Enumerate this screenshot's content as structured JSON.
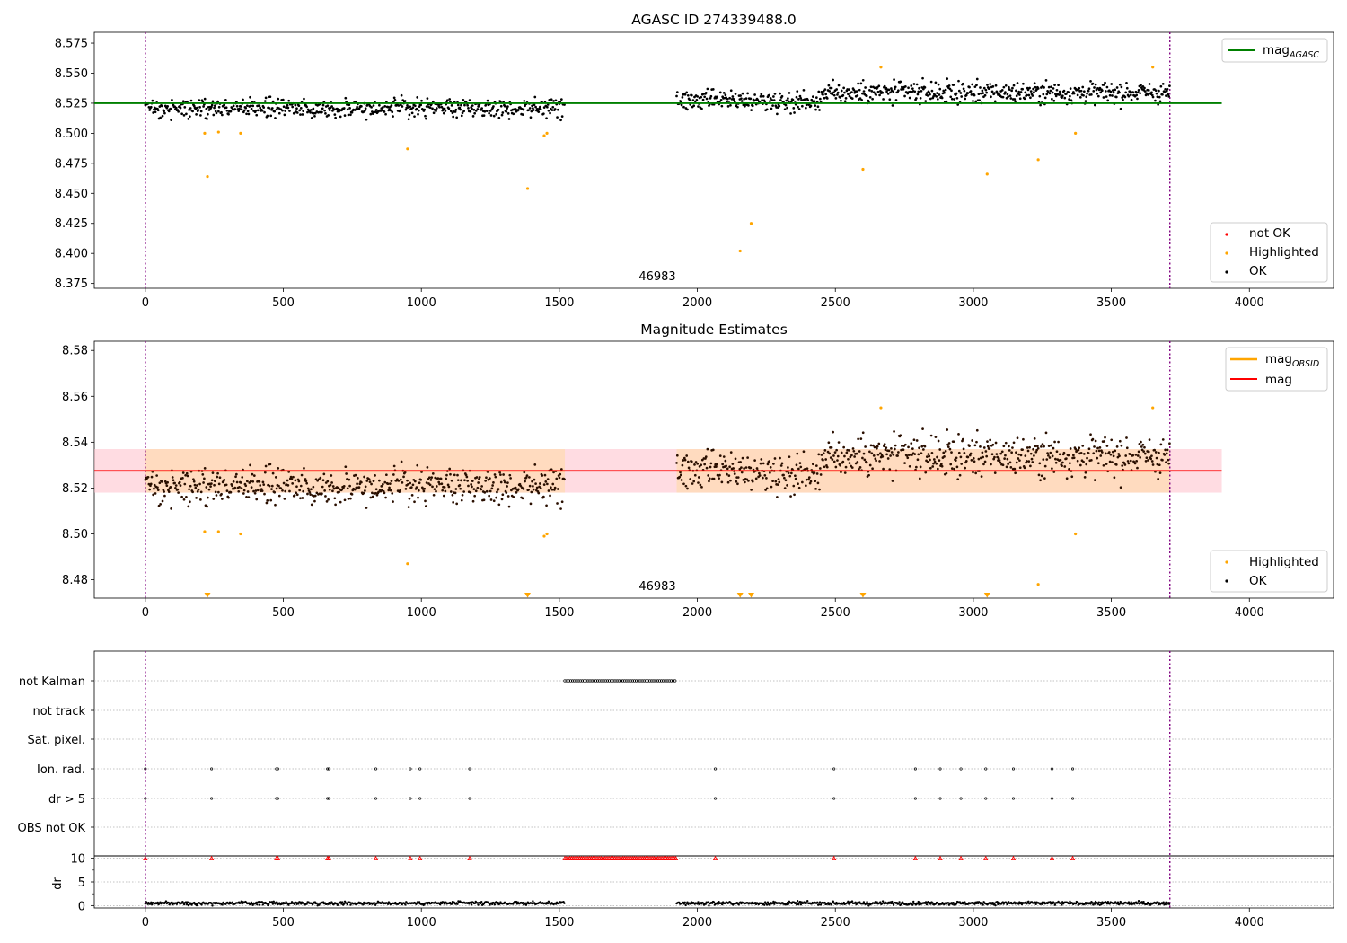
{
  "chart_data": [
    {
      "type": "scatter",
      "title": "AGASC ID 274339488.0",
      "annotation": "46983",
      "xlim": [
        -185,
        4305
      ],
      "ylim": [
        8.371,
        8.584
      ],
      "x_ticks": [
        "0",
        "500",
        "1000",
        "1500",
        "2000",
        "2500",
        "3000",
        "3500",
        "4000"
      ],
      "y_ticks": [
        "8.375",
        "8.400",
        "8.425",
        "8.450",
        "8.475",
        "8.500",
        "8.525",
        "8.550",
        "8.575"
      ],
      "grid": false,
      "vlines_x": [
        0,
        3712
      ],
      "gaps_x": [
        [
          1520,
          1925
        ]
      ],
      "legend_top": {
        "position": "top-right",
        "entries": [
          {
            "label": "mag",
            "subscript": "AGASC",
            "color": "#008000"
          }
        ]
      },
      "legend_bottom": {
        "position": "bottom-right",
        "entries": [
          {
            "label": "not OK",
            "color": "#ff0000"
          },
          {
            "label": "Highlighted",
            "color": "#ffa500"
          },
          {
            "label": "OK",
            "color": "#000000"
          }
        ]
      },
      "series": [
        {
          "name": "mag",
          "subscript": "AGASC",
          "kind": "hline",
          "y": 8.525,
          "x_range": [
            -185,
            3900
          ],
          "color": "#008000"
        },
        {
          "name": "OK",
          "kind": "scatter",
          "color": "#000000",
          "generated": true,
          "segments": [
            {
              "x_range": [
                0,
                1520
              ],
              "center": 8.521,
              "spread": 0.0075
            },
            {
              "x_range": [
                1925,
                2450
              ],
              "center": 8.527,
              "spread": 0.008
            },
            {
              "x_range": [
                2450,
                3712
              ],
              "center": 8.534,
              "spread": 0.0085
            }
          ]
        },
        {
          "name": "Highlighted",
          "kind": "scatter",
          "color": "#ffa500",
          "points": [
            [
              215,
              8.5
            ],
            [
              225,
              8.464
            ],
            [
              265,
              8.501
            ],
            [
              345,
              8.5
            ],
            [
              950,
              8.487
            ],
            [
              1385,
              8.454
            ],
            [
              1445,
              8.498
            ],
            [
              1455,
              8.5
            ],
            [
              2155,
              8.402
            ],
            [
              2195,
              8.425
            ],
            [
              2600,
              8.47
            ],
            [
              2665,
              8.555
            ],
            [
              3050,
              8.466
            ],
            [
              3235,
              8.478
            ],
            [
              3370,
              8.5
            ],
            [
              3650,
              8.555
            ]
          ]
        }
      ]
    },
    {
      "type": "scatter",
      "title": "Magnitude Estimates",
      "annotation": "46983",
      "xlim": [
        -185,
        4305
      ],
      "ylim": [
        8.472,
        8.584
      ],
      "x_ticks": [
        "0",
        "500",
        "1000",
        "1500",
        "2000",
        "2500",
        "3000",
        "3500",
        "4000"
      ],
      "y_ticks": [
        "8.48",
        "8.50",
        "8.52",
        "8.54",
        "8.56",
        "8.58"
      ],
      "grid": false,
      "vlines_x": [
        0,
        3712
      ],
      "legend_top": {
        "position": "top-right",
        "entries": [
          {
            "label": "mag",
            "subscript": "OBSID",
            "color": "#ffa500"
          },
          {
            "label": "mag",
            "color": "#ff0000"
          }
        ]
      },
      "legend_bottom": {
        "position": "bottom-right",
        "entries": [
          {
            "label": "Highlighted",
            "color": "#ffa500"
          },
          {
            "label": "OK",
            "color": "#000000"
          }
        ]
      },
      "series": [
        {
          "name": "mag",
          "kind": "hline",
          "y": 8.5275,
          "x_range": [
            -185,
            3900
          ],
          "color": "#ff0000",
          "band": [
            8.518,
            8.537
          ],
          "band_color": "#ffc0cb"
        },
        {
          "name": "mag",
          "subscript": "OBSID",
          "kind": "band_steps",
          "color": "#ffa500",
          "band_fill": "#ffdab9",
          "steps": [
            {
              "x_range": [
                0,
                1520
              ],
              "y": 8.5275,
              "band": [
                8.518,
                8.537
              ]
            },
            {
              "x_range": [
                1925,
                3712
              ],
              "y": 8.5275,
              "band": [
                8.518,
                8.537
              ]
            }
          ]
        },
        {
          "name": "OK",
          "kind": "scatter",
          "color": "#000000",
          "generated": true,
          "segments": [
            {
              "x_range": [
                0,
                1520
              ],
              "center": 8.521,
              "spread": 0.0075
            },
            {
              "x_range": [
                1925,
                2450
              ],
              "center": 8.527,
              "spread": 0.008
            },
            {
              "x_range": [
                2450,
                3712
              ],
              "center": 8.534,
              "spread": 0.0085
            }
          ]
        },
        {
          "name": "Highlighted",
          "kind": "scatter",
          "color": "#ffa500",
          "points": [
            [
              215,
              8.501
            ],
            [
              265,
              8.501
            ],
            [
              345,
              8.5
            ],
            [
              950,
              8.487
            ],
            [
              1445,
              8.499
            ],
            [
              1455,
              8.5
            ],
            [
              2665,
              8.555
            ],
            [
              3235,
              8.478
            ],
            [
              3370,
              8.5
            ],
            [
              3650,
              8.555
            ]
          ]
        },
        {
          "name": "Highlighted (off-scale)",
          "kind": "arrows",
          "color": "#ffa500",
          "x": [
            225,
            1385,
            2155,
            2195,
            2600,
            3050
          ]
        }
      ]
    },
    {
      "type": "scatter",
      "title": "",
      "xlim": [
        -185,
        4305
      ],
      "x_ticks": [
        "0",
        "500",
        "1000",
        "1500",
        "2000",
        "2500",
        "3000",
        "3500",
        "4000"
      ],
      "vlines_x": [
        0,
        3712
      ],
      "flag_rows": [
        "not Kalman",
        "not track",
        "Sat. pixel.",
        "Ion. rad.",
        "dr > 5",
        "OBS not OK"
      ],
      "flags": {
        "not Kalman": {
          "x_range": [
            1520,
            1925
          ]
        },
        "not track": {
          "x": []
        },
        "Sat. pixel.": {
          "x": []
        },
        "Ion. rad.": {
          "x": [
            0,
            240,
            475,
            480,
            660,
            665,
            835,
            960,
            995,
            1175,
            2065,
            2495,
            2790,
            2880,
            2955,
            3045,
            3145,
            3285,
            3360
          ]
        },
        "dr > 5": {
          "x": [
            0,
            240,
            475,
            480,
            660,
            665,
            835,
            960,
            995,
            1175,
            2065,
            2495,
            2790,
            2880,
            2955,
            3045,
            3145,
            3285,
            3360
          ]
        },
        "OBS not OK": {
          "x": []
        }
      },
      "dr_panel": {
        "ylabel": "dr",
        "y_ticks": [
          "0",
          "5",
          "10"
        ],
        "ylim": [
          -0.5,
          10.5
        ],
        "clip_value": 10,
        "clipped_x": [
          0,
          240,
          475,
          480,
          660,
          665,
          835,
          960,
          995,
          1175,
          2065,
          2495,
          2790,
          2880,
          2955,
          3045,
          3145,
          3285,
          3360
        ],
        "clipped_range": [
          1520,
          1925
        ],
        "series": {
          "name": "dr",
          "color": "#000000",
          "generated": true,
          "segments": [
            {
              "x_range": [
                0,
                1520
              ],
              "center": 0.5,
              "spread": 0.35
            },
            {
              "x_range": [
                1925,
                3712
              ],
              "center": 0.5,
              "spread": 0.35
            }
          ]
        }
      }
    }
  ]
}
